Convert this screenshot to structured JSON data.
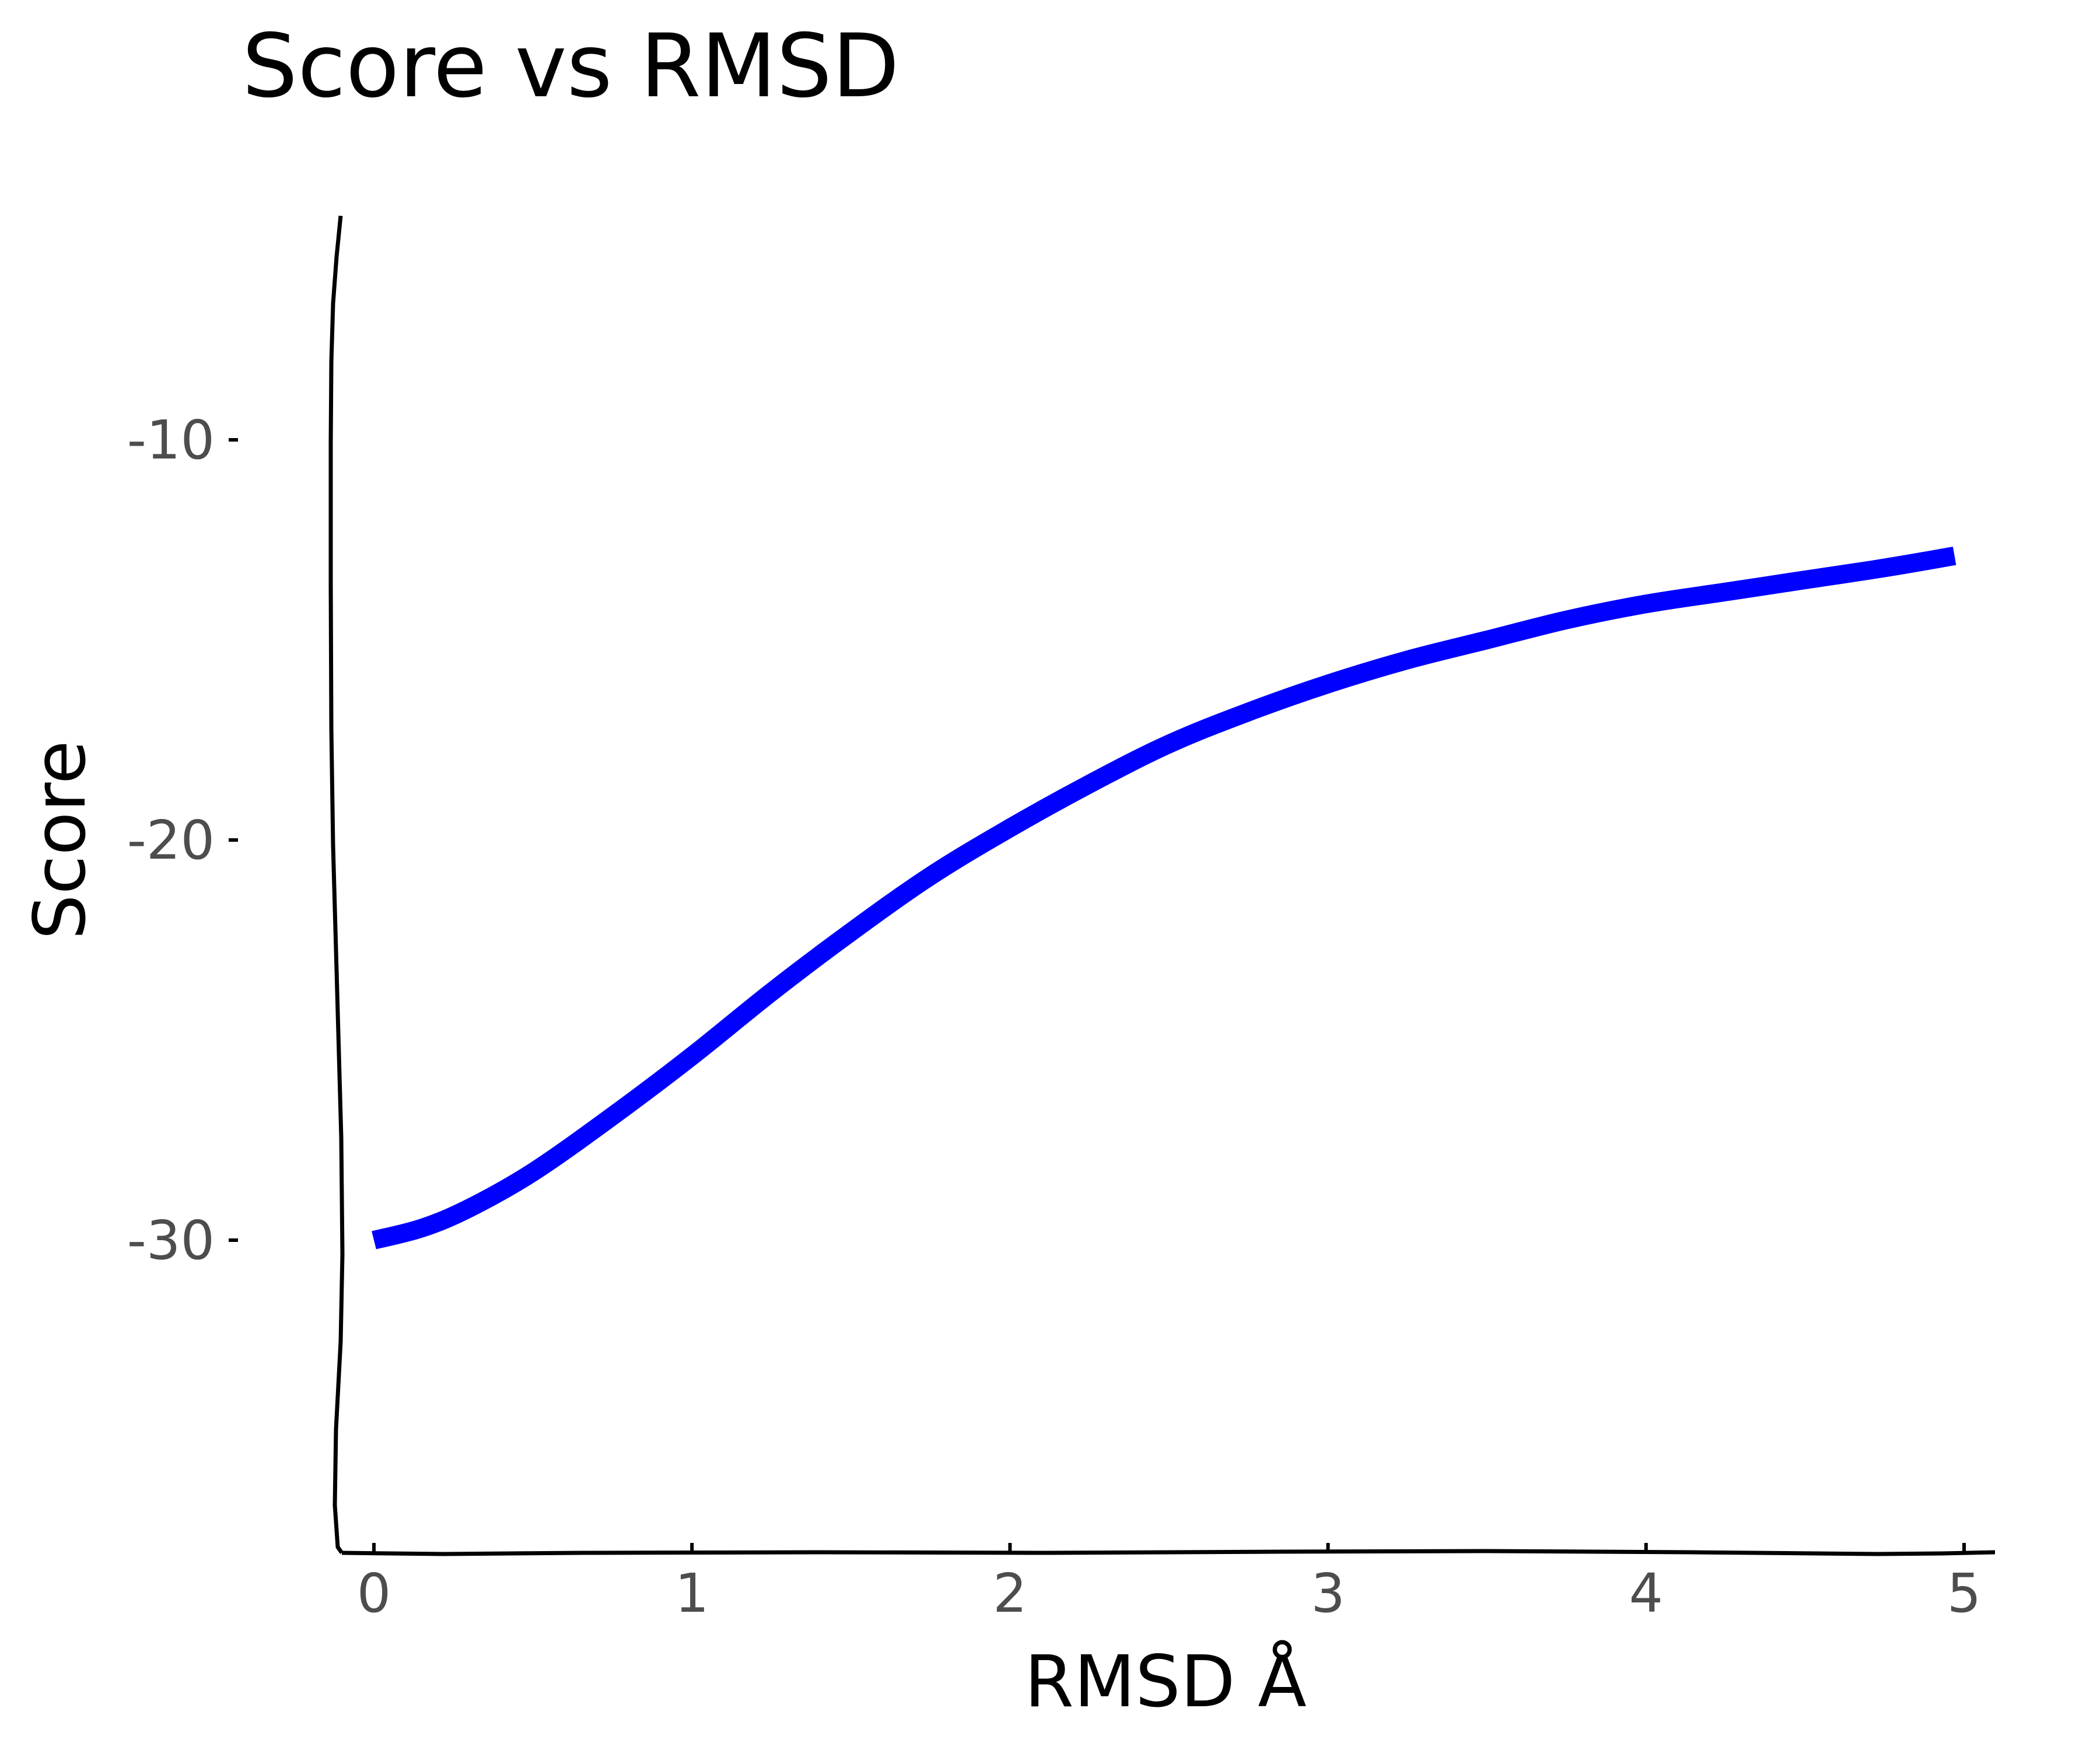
{
  "chart_data": {
    "type": "line",
    "title": "Score vs RMSD",
    "xlabel": "RMSD Å",
    "ylabel": "Score",
    "x_ticks": [
      0,
      1,
      2,
      3,
      4,
      5
    ],
    "y_ticks": [
      -30,
      -20,
      -10
    ],
    "xlim": [
      -0.1,
      5.1
    ],
    "ylim": [
      -35.6,
      -4.4
    ],
    "grid": false,
    "legend": "none",
    "series": [
      {
        "color": "#0000ff",
        "x": [
          0,
          0.15,
          0.3,
          0.5,
          0.75,
          1.0,
          1.25,
          1.5,
          1.75,
          2.0,
          2.25,
          2.5,
          2.75,
          3.0,
          3.25,
          3.5,
          3.75,
          4.0,
          4.25,
          4.5,
          4.75,
          4.97
        ],
        "y": [
          -30.0,
          -29.7,
          -29.2,
          -28.3,
          -26.9,
          -25.4,
          -23.8,
          -22.3,
          -20.9,
          -19.7,
          -18.6,
          -17.6,
          -16.8,
          -16.1,
          -15.5,
          -15.0,
          -14.5,
          -14.1,
          -13.8,
          -13.5,
          -13.2,
          -12.9
        ]
      }
    ]
  }
}
